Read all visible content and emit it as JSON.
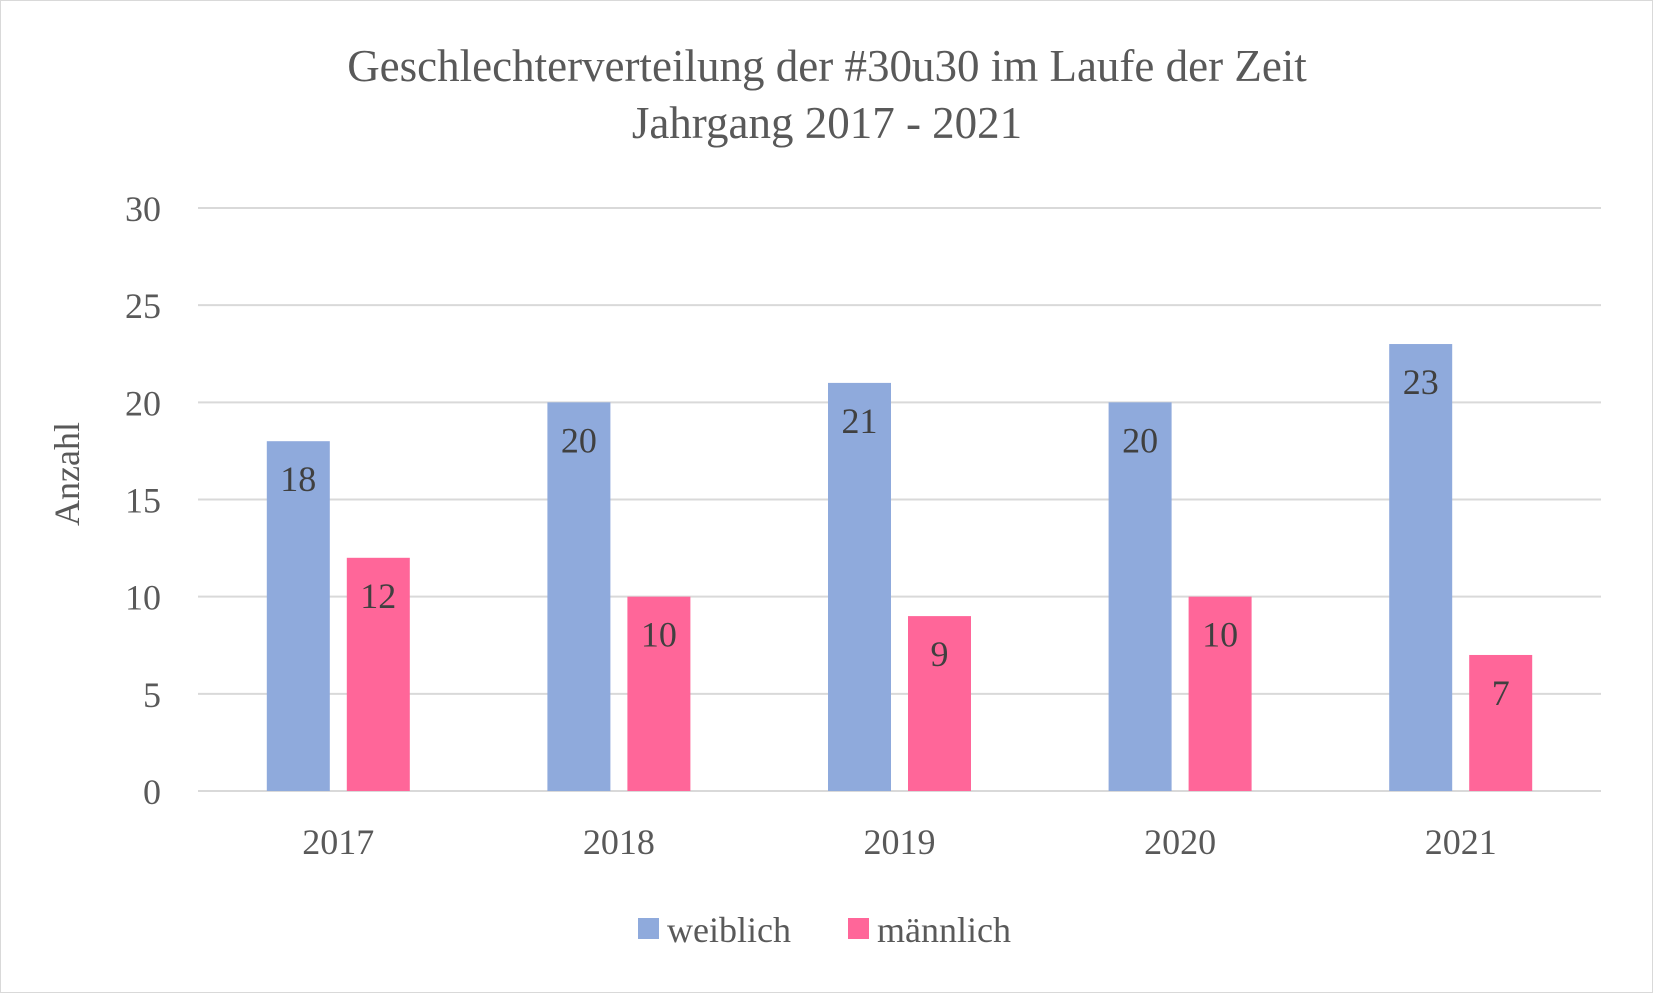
{
  "chart_data": {
    "type": "bar",
    "title": "Geschlechterverteilung der #30u30 im Laufe der Zeit",
    "subtitle": "Jahrgang 2017 - 2021",
    "ylabel": "Anzahl",
    "xlabel": "",
    "categories": [
      "2017",
      "2018",
      "2019",
      "2020",
      "2021"
    ],
    "series": [
      {
        "name": "weiblich",
        "values": [
          18,
          20,
          21,
          20,
          23
        ],
        "color": "#8faadc"
      },
      {
        "name": "männlich",
        "values": [
          12,
          10,
          9,
          10,
          7
        ],
        "color": "#ff6699"
      }
    ],
    "ylim": [
      0,
      30
    ],
    "yticks": [
      "0",
      "5",
      "10",
      "15",
      "20",
      "25",
      "30"
    ],
    "grid": true,
    "legend_position": "bottom",
    "data_labels": "inside-end"
  }
}
